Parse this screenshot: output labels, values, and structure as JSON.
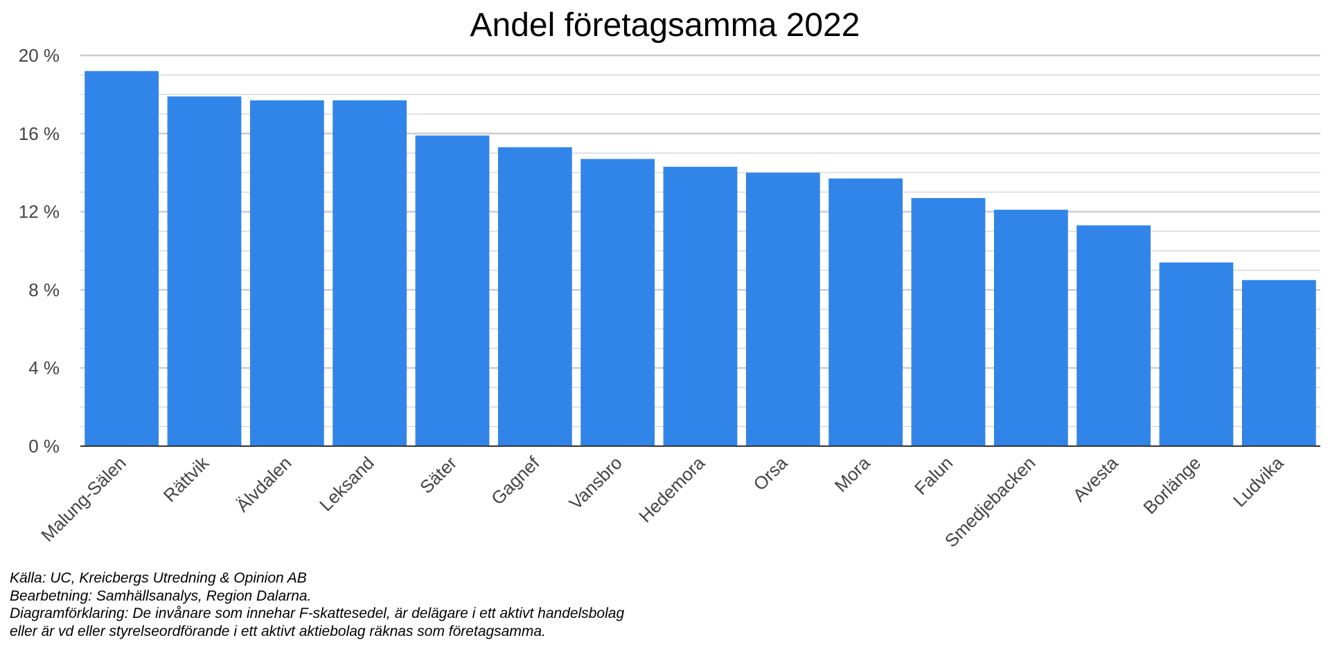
{
  "chart_data": {
    "type": "bar",
    "title": "Andel företagsamma 2022",
    "categories": [
      "Malung-Sälen",
      "Rättvik",
      "Älvdalen",
      "Leksand",
      "Säter",
      "Gagnef",
      "Vansbro",
      "Hedemora",
      "Orsa",
      "Mora",
      "Falun",
      "Smedjebacken",
      "Avesta",
      "Borlänge",
      "Ludvika"
    ],
    "values": [
      19.2,
      17.9,
      17.7,
      17.7,
      15.9,
      15.3,
      14.7,
      14.3,
      14.0,
      13.7,
      12.7,
      12.1,
      11.3,
      9.4,
      8.5
    ],
    "ylim": [
      0,
      20
    ],
    "yticks": [
      0,
      4,
      8,
      12,
      16,
      20
    ],
    "ytick_labels": [
      "0 %",
      "4 %",
      "8 %",
      "12 %",
      "16 %",
      "20 %"
    ],
    "minor_step": 1,
    "grid": true,
    "xlabel": "",
    "ylabel": "",
    "colors": {
      "bar": "#3185E8",
      "major_grid": "#cccccc",
      "minor_grid": "#d9d9d9",
      "axis": "#333333"
    }
  },
  "notes": {
    "source": "Källa: UC, Kreicbergs Utredning & Opinion AB",
    "processing": "Bearbetning: Samhällsanalys, Region Dalarna.",
    "legend_line1": "Diagramförklaring: De invånare som innehar F-skattesedel, är delägare i ett aktivt handelsbolag",
    "legend_line2": "eller är vd eller styrelseordförande i ett aktivt aktiebolag räknas som företagsamma."
  }
}
